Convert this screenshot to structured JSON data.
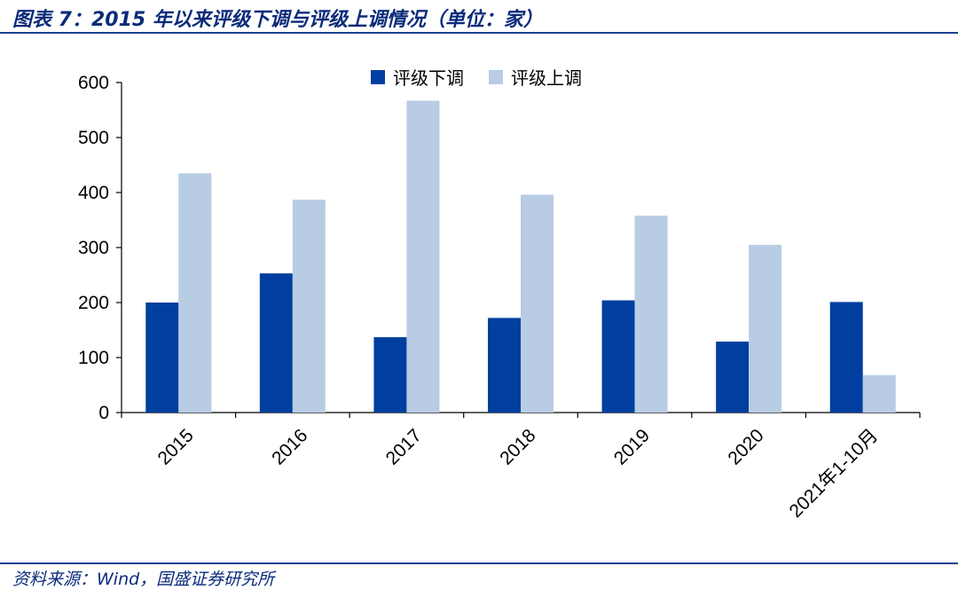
{
  "header": {
    "title": "图表 7：2015 年以来评级下调与评级上调情况（单位：家）"
  },
  "footer": {
    "source": "资料来源：Wind，国盛证券研究所"
  },
  "chart_data": {
    "type": "bar",
    "categories": [
      "2015",
      "2016",
      "2017",
      "2018",
      "2019",
      "2020",
      "2021年1-10月"
    ],
    "series": [
      {
        "name": "评级下调",
        "color": "#003f9f",
        "values": [
          200,
          253,
          137,
          172,
          204,
          129,
          201
        ]
      },
      {
        "name": "评级上调",
        "color": "#b8cce4",
        "values": [
          435,
          387,
          567,
          396,
          358,
          305,
          68
        ]
      }
    ],
    "yticks": [
      0,
      100,
      200,
      300,
      400,
      500,
      600
    ],
    "ylim": [
      0,
      600
    ],
    "legend_position": "top-center",
    "grid": false
  }
}
